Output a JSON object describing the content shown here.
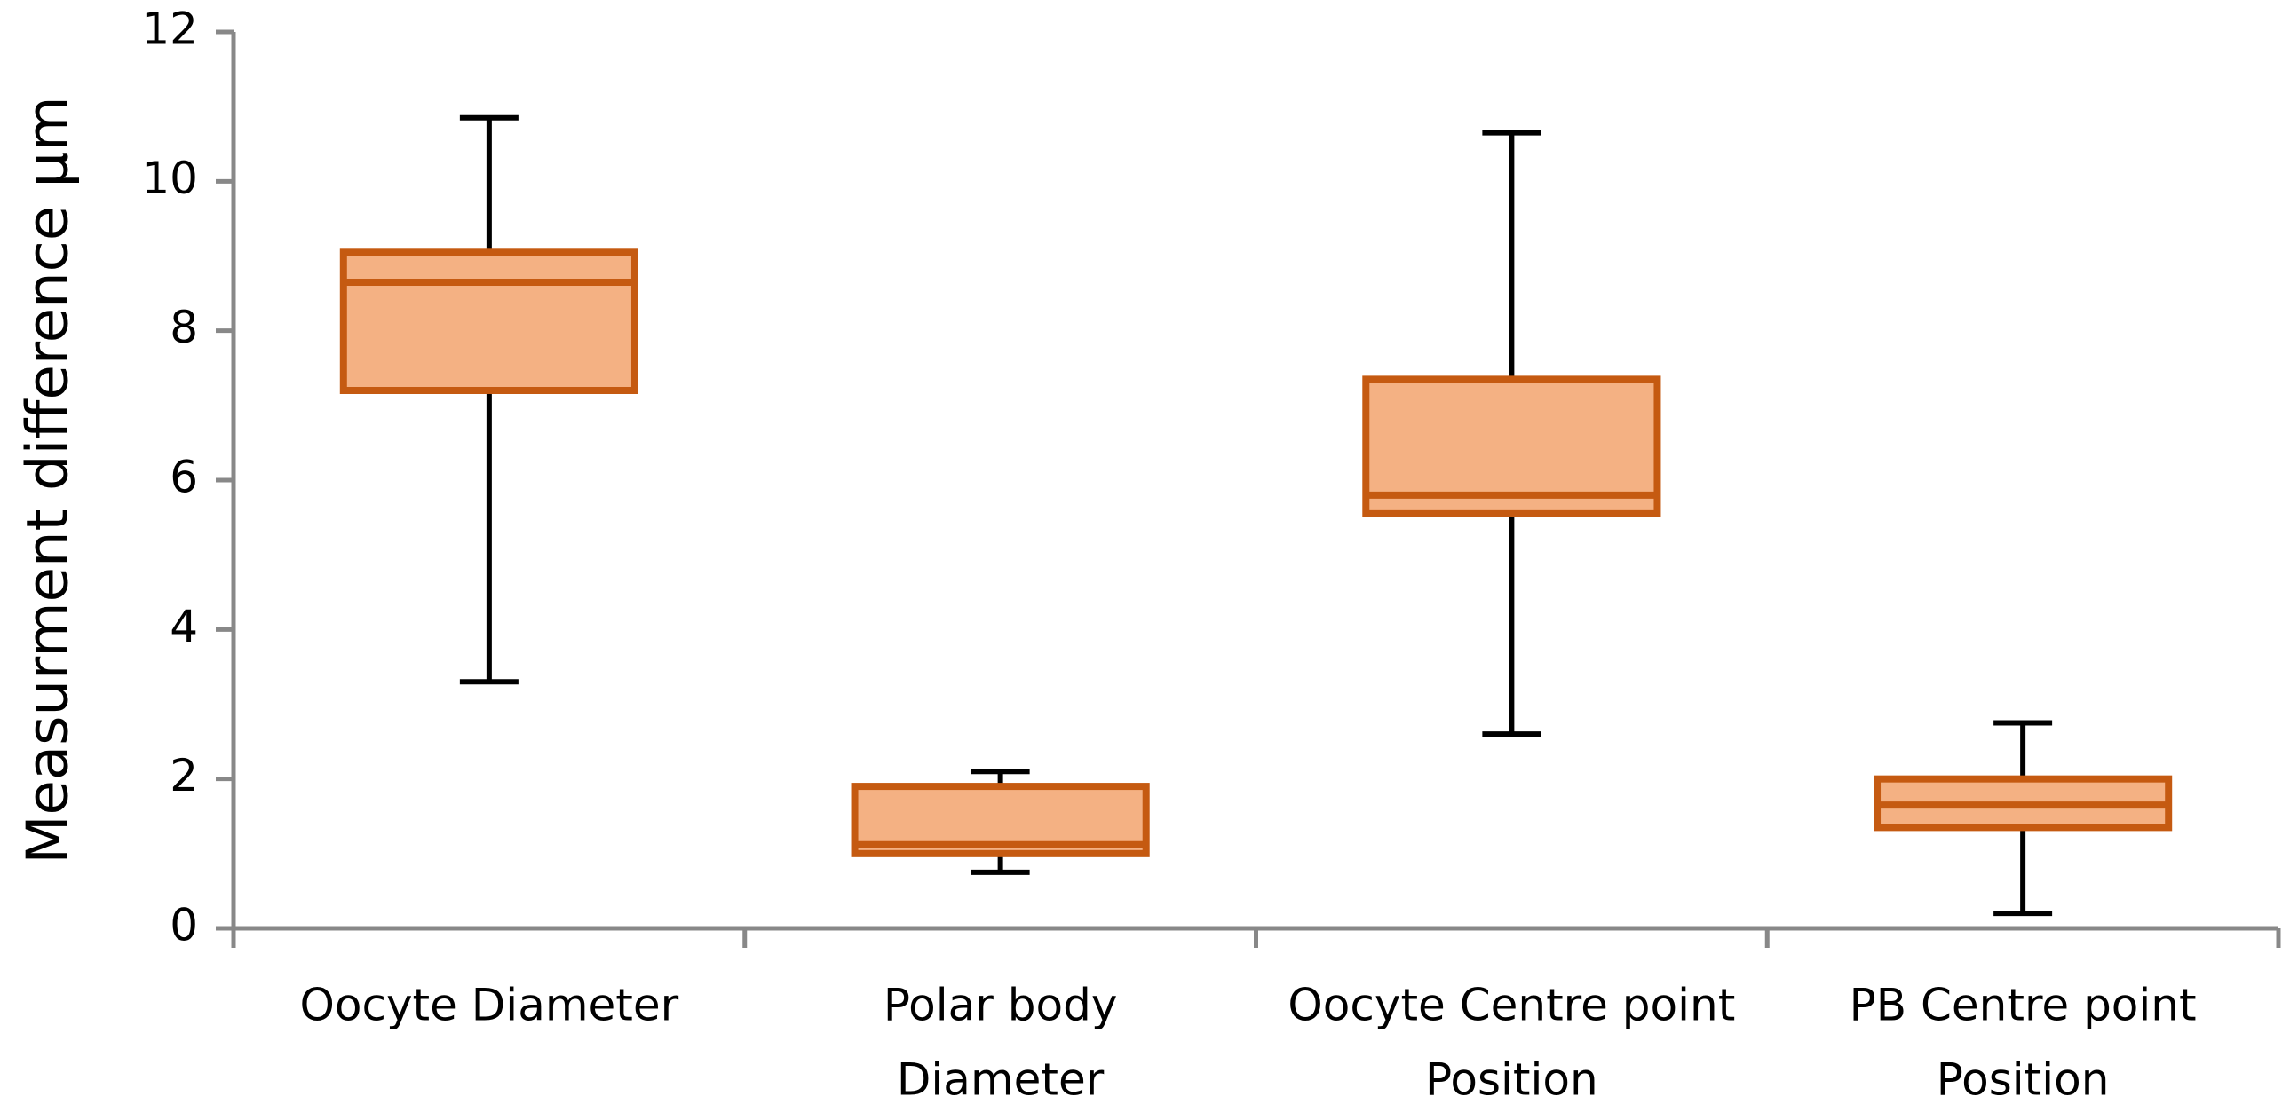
{
  "chart_data": {
    "type": "box",
    "y_label": "Measurment difference  µm",
    "categories": [
      [
        "Oocyte  Diameter"
      ],
      [
        "Polar body",
        "Diameter"
      ],
      [
        "Oocyte Centre point",
        "Position"
      ],
      [
        "PB  Centre point",
        "Position"
      ]
    ],
    "boxes": [
      {
        "min": 3.3,
        "q1": 7.2,
        "median": 8.65,
        "q3": 9.05,
        "max": 10.85
      },
      {
        "min": 0.75,
        "q1": 1.0,
        "median": 1.12,
        "q3": 1.9,
        "max": 2.1
      },
      {
        "min": 2.6,
        "q1": 5.55,
        "median": 5.8,
        "q3": 7.35,
        "max": 10.65
      },
      {
        "min": 0.2,
        "q1": 1.35,
        "median": 1.65,
        "q3": 2.0,
        "max": 2.75
      }
    ],
    "fill": "#f4b183",
    "stroke": "#c55a11",
    "whisker_color": "#000000",
    "ylim": [
      0,
      12
    ],
    "yticks": [
      0,
      2,
      4,
      6,
      8,
      10,
      12
    ]
  }
}
